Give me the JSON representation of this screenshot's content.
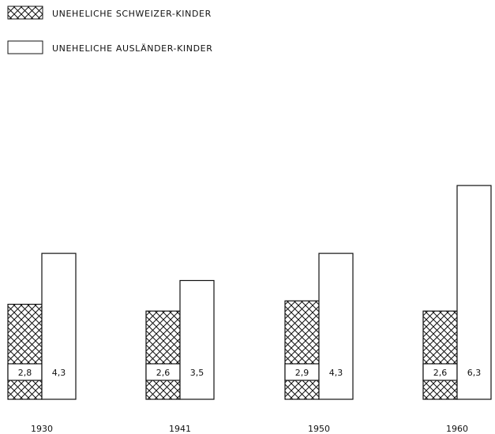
{
  "chart_data": {
    "type": "bar",
    "title": "",
    "xlabel": "",
    "ylabel": "",
    "categories": [
      "1930",
      "1941",
      "1950",
      "1960"
    ],
    "series": [
      {
        "name": "UNEHELICHE SCHWEIZER-KINDER",
        "values": [
          2.8,
          2.6,
          2.9,
          2.6
        ],
        "labels": [
          "2,8",
          "2,6",
          "2,9",
          "2,6"
        ],
        "pattern": "crosshatch"
      },
      {
        "name": "UNEHELICHE AUSLÄNDER-KINDER",
        "values": [
          4.3,
          3.5,
          4.3,
          6.3
        ],
        "labels": [
          "4,3",
          "3,5",
          "4,3",
          "6,3"
        ],
        "pattern": "blank"
      }
    ],
    "ylim": [
      0,
      6.6
    ],
    "grid": false,
    "legend_position": "top-left",
    "colors": {
      "stroke": "#111111",
      "fill_blank": "#ffffff",
      "hatch": "#111111"
    }
  }
}
